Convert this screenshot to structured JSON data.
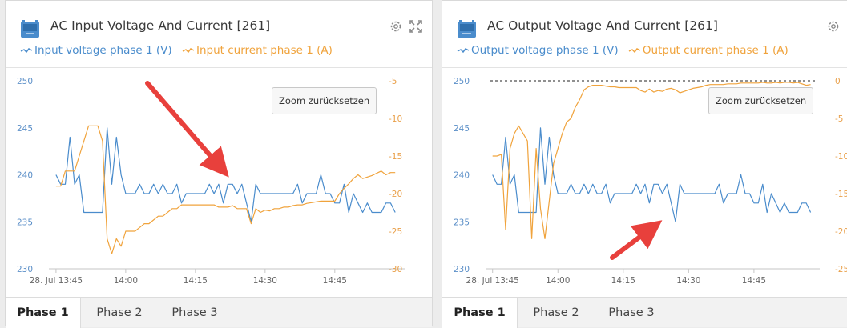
{
  "panels": [
    {
      "title": "AC Input Voltage And Current [261]",
      "legend": [
        {
          "label": "Input voltage phase 1 (V)",
          "color": "#4a8ccc"
        },
        {
          "label": "Input current phase 1 (A)",
          "color": "#f0a33c"
        }
      ],
      "zoom_label": "Zoom zurücksetzen",
      "tabs": [
        "Phase 1",
        "Phase 2",
        "Phase 3"
      ],
      "active_tab": 0
    },
    {
      "title": "AC Output Voltage And Current [261]",
      "legend": [
        {
          "label": "Output voltage phase 1 (V)",
          "color": "#4a8ccc"
        },
        {
          "label": "Output current phase 1 (A)",
          "color": "#f0a33c"
        }
      ],
      "zoom_label": "Zoom zurücksetzen",
      "tabs": [
        "Phase 1",
        "Phase 2",
        "Phase 3"
      ],
      "active_tab": 0
    }
  ],
  "chart_data": [
    {
      "type": "line",
      "x_ticks": [
        "28. Jul 13:45",
        "14:00",
        "14:15",
        "14:30",
        "14:45"
      ],
      "y_left_ticks": [
        "230",
        "235",
        "240",
        "245",
        "250"
      ],
      "y_right_ticks": [
        "-30",
        "-25",
        "-20",
        "-15",
        "-10",
        "-5"
      ],
      "ylim_left": [
        230,
        250
      ],
      "ylim_right": [
        -30,
        -5
      ],
      "x_minutes_range": [
        -0.5,
        74
      ],
      "reference_line": null,
      "series": [
        {
          "name": "Input voltage phase 1 (V)",
          "axis": "left",
          "color": "#4a8ccc",
          "x": [
            0,
            1,
            2,
            3,
            4,
            5,
            6,
            7,
            8,
            9,
            10,
            11,
            12,
            13,
            14,
            15,
            16,
            17,
            18,
            19,
            20,
            21,
            22,
            23,
            24,
            25,
            26,
            27,
            28,
            29,
            30,
            31,
            32,
            33,
            34,
            35,
            36,
            37,
            38,
            39,
            40,
            41,
            42,
            43,
            44,
            45,
            46,
            47,
            48,
            49,
            50,
            51,
            52,
            53,
            54,
            55,
            56,
            57,
            58,
            59,
            60,
            61,
            62,
            63,
            64,
            65,
            66,
            67,
            68,
            69,
            70,
            71,
            72,
            73
          ],
          "values": [
            240,
            239,
            239,
            244,
            239,
            240,
            236,
            236,
            236,
            236,
            236,
            245,
            239,
            244,
            240,
            238,
            238,
            238,
            239,
            238,
            238,
            239,
            238,
            239,
            238,
            238,
            239,
            237,
            238,
            238,
            238,
            238,
            238,
            239,
            238,
            239,
            237,
            239,
            239,
            238,
            239,
            237,
            235,
            239,
            238,
            238,
            238,
            238,
            238,
            238,
            238,
            238,
            239,
            237,
            238,
            238,
            238,
            240,
            238,
            238,
            237,
            237,
            239,
            236,
            238,
            237,
            236,
            237,
            236,
            236,
            236,
            237,
            237,
            236
          ]
        },
        {
          "name": "Input current phase 1 (A)",
          "axis": "right",
          "color": "#f0a33c",
          "x": [
            0,
            1,
            2,
            3,
            4,
            5,
            6,
            7,
            8,
            9,
            10,
            11,
            12,
            13,
            14,
            15,
            16,
            17,
            18,
            19,
            20,
            21,
            22,
            23,
            24,
            25,
            26,
            27,
            28,
            29,
            30,
            31,
            32,
            33,
            34,
            35,
            36,
            37,
            38,
            39,
            40,
            41,
            42,
            43,
            44,
            45,
            46,
            47,
            48,
            49,
            50,
            51,
            52,
            53,
            54,
            55,
            56,
            57,
            58,
            59,
            60,
            61,
            62,
            63,
            64,
            65,
            66,
            67,
            68,
            69,
            70,
            71,
            72,
            73
          ],
          "values": [
            -19,
            -19,
            -17,
            -17,
            -17,
            -15,
            -13,
            -11,
            -11,
            -11,
            -13,
            -26,
            -28,
            -26,
            -27,
            -25,
            -25,
            -25,
            -24.5,
            -24,
            -24,
            -23.5,
            -23,
            -23,
            -22.5,
            -22,
            -22,
            -21.5,
            -21.5,
            -21.5,
            -21.5,
            -21.5,
            -21.5,
            -21.5,
            -21.5,
            -21.8,
            -21.8,
            -21.8,
            -21.6,
            -22,
            -22,
            -22,
            -24,
            -22,
            -22.5,
            -22.2,
            -22.3,
            -22,
            -22,
            -21.8,
            -21.8,
            -21.6,
            -21.5,
            -21.5,
            -21.3,
            -21.2,
            -21.1,
            -21,
            -21,
            -21,
            -21,
            -20,
            -19.3,
            -18.7,
            -18,
            -17.5,
            -18,
            -17.8,
            -17.6,
            -17.3,
            -17,
            -17.5,
            -17.2,
            -17.2
          ]
        }
      ]
    },
    {
      "type": "line",
      "x_ticks": [
        "28. Jul 13:45",
        "14:00",
        "14:15",
        "14:30",
        "14:45"
      ],
      "y_left_ticks": [
        "230",
        "235",
        "240",
        "245",
        "250"
      ],
      "y_right_ticks": [
        "-25",
        "-20",
        "-15",
        "-10",
        "-5",
        "0"
      ],
      "ylim_left": [
        230,
        250
      ],
      "ylim_right": [
        -25,
        0
      ],
      "x_minutes_range": [
        -0.5,
        74
      ],
      "reference_line": {
        "axis": "right",
        "value": 0,
        "style": "dashed",
        "color": "#222222"
      },
      "series": [
        {
          "name": "Output voltage phase 1 (V)",
          "axis": "left",
          "color": "#4a8ccc",
          "x": [
            0,
            1,
            2,
            3,
            4,
            5,
            6,
            7,
            8,
            9,
            10,
            11,
            12,
            13,
            14,
            15,
            16,
            17,
            18,
            19,
            20,
            21,
            22,
            23,
            24,
            25,
            26,
            27,
            28,
            29,
            30,
            31,
            32,
            33,
            34,
            35,
            36,
            37,
            38,
            39,
            40,
            41,
            42,
            43,
            44,
            45,
            46,
            47,
            48,
            49,
            50,
            51,
            52,
            53,
            54,
            55,
            56,
            57,
            58,
            59,
            60,
            61,
            62,
            63,
            64,
            65,
            66,
            67,
            68,
            69,
            70,
            71,
            72,
            73
          ],
          "values": [
            240,
            239,
            239,
            244,
            239,
            240,
            236,
            236,
            236,
            236,
            236,
            245,
            239,
            244,
            240,
            238,
            238,
            238,
            239,
            238,
            238,
            239,
            238,
            239,
            238,
            238,
            239,
            237,
            238,
            238,
            238,
            238,
            238,
            239,
            238,
            239,
            237,
            239,
            239,
            238,
            239,
            237,
            235,
            239,
            238,
            238,
            238,
            238,
            238,
            238,
            238,
            238,
            239,
            237,
            238,
            238,
            238,
            240,
            238,
            238,
            237,
            237,
            239,
            236,
            238,
            237,
            236,
            237,
            236,
            236,
            236,
            237,
            237,
            236
          ]
        },
        {
          "name": "Output current phase 1 (A)",
          "axis": "right",
          "color": "#f0a33c",
          "x": [
            0,
            1,
            2,
            3,
            4,
            5,
            6,
            7,
            8,
            9,
            10,
            11,
            12,
            13,
            14,
            15,
            16,
            17,
            18,
            19,
            20,
            21,
            22,
            23,
            24,
            25,
            26,
            27,
            28,
            29,
            30,
            31,
            32,
            33,
            34,
            35,
            36,
            37,
            38,
            39,
            40,
            41,
            42,
            43,
            44,
            45,
            46,
            47,
            48,
            49,
            50,
            51,
            52,
            53,
            54,
            55,
            56,
            57,
            58,
            59,
            60,
            61,
            62,
            63,
            64,
            65,
            66,
            67,
            68,
            69,
            70,
            71,
            72,
            73
          ],
          "values": [
            -10,
            -10,
            -9.8,
            -19.8,
            -9,
            -7,
            -6,
            -7,
            -8,
            -21,
            -9,
            -17,
            -21,
            -16,
            -11,
            -9,
            -7,
            -5.5,
            -5,
            -3.5,
            -2.5,
            -1.2,
            -0.8,
            -0.6,
            -0.6,
            -0.6,
            -0.7,
            -0.8,
            -0.8,
            -0.9,
            -0.9,
            -0.9,
            -0.9,
            -0.9,
            -1.3,
            -1.5,
            -1.1,
            -1.5,
            -1.3,
            -1.4,
            -1.1,
            -1,
            -1.2,
            -1.6,
            -1.4,
            -1.2,
            -1,
            -0.9,
            -0.8,
            -0.6,
            -0.5,
            -0.5,
            -0.5,
            -0.5,
            -0.4,
            -0.4,
            -0.4,
            -0.3,
            -0.3,
            -0.3,
            -0.3,
            -0.3,
            -0.2,
            -0.3,
            -0.3,
            -0.2,
            -0.3,
            -0.2,
            -0.2,
            -0.3,
            -0.2,
            -0.4,
            -0.6,
            -0.5
          ]
        }
      ]
    }
  ]
}
